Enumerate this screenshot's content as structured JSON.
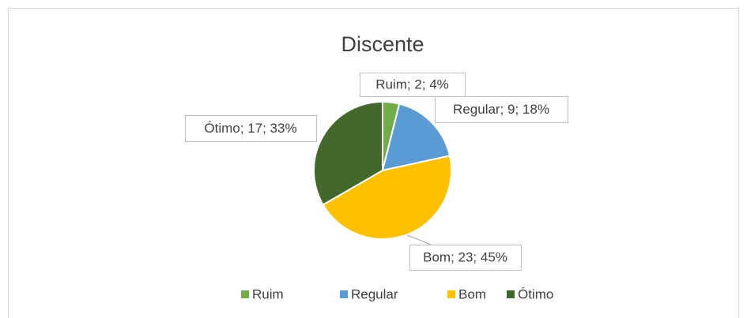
{
  "chart_data": {
    "type": "pie",
    "title": "Discente",
    "categories": [
      "Ruim",
      "Regular",
      "Bom",
      "Ótimo"
    ],
    "values": [
      2,
      9,
      23,
      17
    ],
    "value_labels": [
      "Ruim; 2; 4%",
      "Regular; 9; 18%",
      "Bom; 23; 45%",
      "Ótimo; 17; 33%"
    ],
    "colors": [
      "#70ad47",
      "#5b9bd5",
      "#ffc000",
      "#43682b"
    ],
    "legend": "bottom"
  }
}
